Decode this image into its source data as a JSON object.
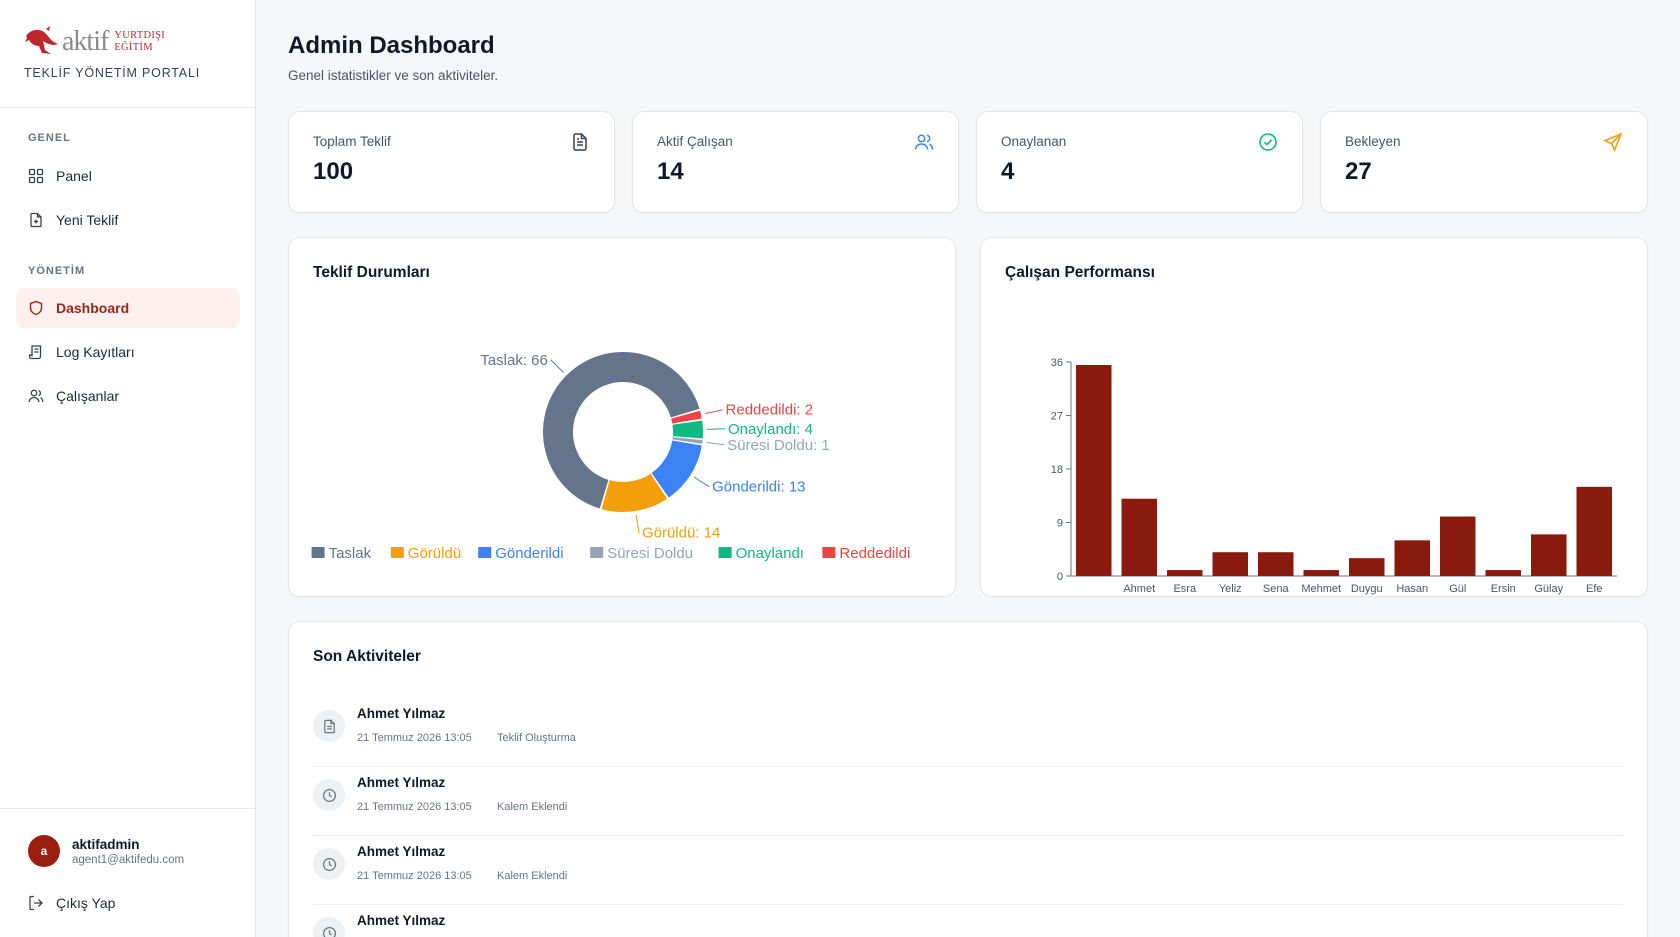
{
  "brand": {
    "logo_word": "aktif",
    "logo_sub_1": "YURTDIŞI",
    "logo_sub_2": "EĞİTİM",
    "portal_name": "TEKLİF YÖNETİM PORTALI"
  },
  "sidebar": {
    "sections": [
      {
        "title": "GENEL",
        "items": [
          {
            "label": "Panel",
            "icon": "grid-icon"
          },
          {
            "label": "Yeni Teklif",
            "icon": "file-plus-icon"
          }
        ]
      },
      {
        "title": "YÖNETİM",
        "items": [
          {
            "label": "Dashboard",
            "icon": "shield-icon",
            "active": true
          },
          {
            "label": "Log Kayıtları",
            "icon": "log-icon"
          },
          {
            "label": "Çalışanlar",
            "icon": "users-icon"
          }
        ]
      }
    ],
    "user": {
      "initial": "a",
      "name": "aktifadmin",
      "email": "agent1@aktifedu.com"
    },
    "logout_label": "Çıkış Yap"
  },
  "header": {
    "title": "Admin Dashboard",
    "subtitle": "Genel istatistikler ve son aktiviteler."
  },
  "stats": [
    {
      "label": "Toplam Teklif",
      "value": "100",
      "icon": "document-icon",
      "color": "#374151"
    },
    {
      "label": "Aktif Çalışan",
      "value": "14",
      "icon": "users-icon",
      "color": "#3b82f6"
    },
    {
      "label": "Onaylanan",
      "value": "4",
      "icon": "check-circle-icon",
      "color": "#10b981"
    },
    {
      "label": "Bekleyen",
      "value": "27",
      "icon": "send-icon",
      "color": "#f59e0b"
    }
  ],
  "status_panel": {
    "title": "Teklif Durumları"
  },
  "performance_panel": {
    "title": "Çalışan Performansı"
  },
  "chart_data": [
    {
      "type": "pie",
      "title": "Teklif Durumları",
      "labels": [
        "Taslak",
        "Görüldü",
        "Gönderildi",
        "Süresi Doldu",
        "Onaylandı",
        "Reddedildi"
      ],
      "values": [
        66,
        14,
        13,
        1,
        4,
        2
      ],
      "colors": [
        "#64748b",
        "#f59e0b",
        "#3b82f6",
        "#94a3b8",
        "#10b981",
        "#ef4444"
      ],
      "slice_labels": [
        "Taslak: 66",
        "Görüldü: 14",
        "Gönderildi: 13",
        "Süresi Doldu: 1",
        "Onaylandı: 4",
        "Reddedildi: 2"
      ],
      "legend": "bottom"
    },
    {
      "type": "bar",
      "title": "Çalışan Performansı",
      "categories": [
        "",
        "Ahmet",
        "Esra",
        "Yeliz",
        "Sena",
        "Mehmet",
        "Duygu",
        "Hasan",
        "Gül",
        "Ersin",
        "Gülay",
        "Efe"
      ],
      "values": [
        35.5,
        13,
        1,
        4,
        4,
        1,
        3,
        6,
        10,
        1,
        7,
        15
      ],
      "color": "#8b1a0e",
      "yticks": [
        "0",
        "9",
        "18",
        "27",
        "36"
      ],
      "ylim": [
        0,
        36
      ],
      "grid": false
    }
  ],
  "activities": {
    "title": "Son Aktiviteler",
    "items": [
      {
        "name": "Ahmet Yılmaz",
        "date": "21 Temmuz 2026 13:05",
        "type": "Teklif Oluşturma",
        "icon": "document-icon"
      },
      {
        "name": "Ahmet Yılmaz",
        "date": "21 Temmuz 2026 13:05",
        "type": "Kalem Eklendi",
        "icon": "clock-icon"
      },
      {
        "name": "Ahmet Yılmaz",
        "date": "21 Temmuz 2026 13:05",
        "type": "Kalem Eklendi",
        "icon": "clock-icon"
      },
      {
        "name": "Ahmet Yılmaz",
        "date": "",
        "type": "",
        "icon": "clock-icon"
      }
    ]
  }
}
